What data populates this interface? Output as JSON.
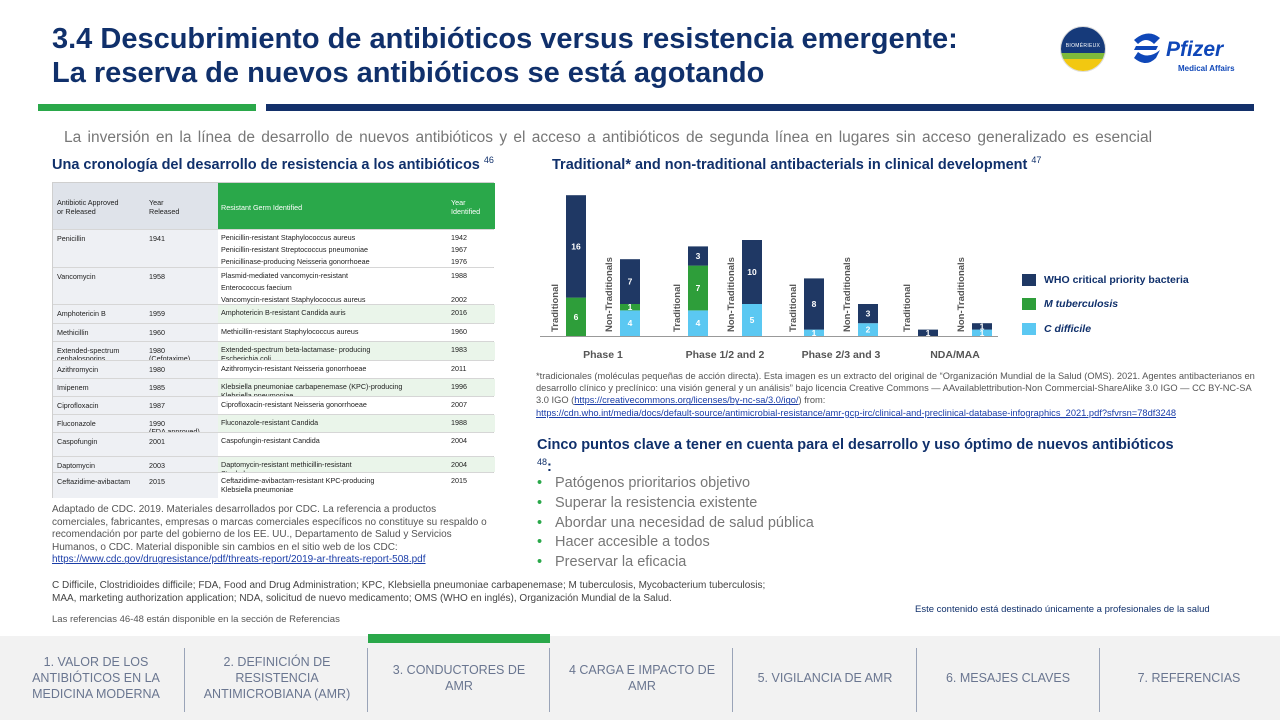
{
  "header": {
    "title_line1": "3.4 Descubrimiento de antibióticos versus resistencia emergente:",
    "title_line2": "La reserva de nuevos antibióticos se está agotando",
    "logo_biomerieux_text": "BIOMÉRIEUX",
    "logo_pfizer_text": "Pfizer",
    "logo_pfizer_sub": "Medical Affairs"
  },
  "intro": "La inversión en la línea de desarrollo de nuevos antibióticos y el acceso a antibióticos de segunda línea en lugares sin acceso generalizado es esencial",
  "subheading_left": "Una cronología del desarrollo de resistencia a los antibióticos",
  "subheading_left_ref": "46",
  "subheading_right": "Traditional* and non-traditional antibacterials in clinical development",
  "subheading_right_ref": "47",
  "table": {
    "headers": [
      "Antibiotic Approved",
      "or Released",
      "Year",
      "Released",
      "Resistant Germ Identified",
      "Year",
      "Identified"
    ],
    "rows": [
      {
        "antibiotic": "Penicillin",
        "year": "1941",
        "germs": [
          "Penicillin-resistant Staphylococcus aureus",
          "Penicillin-resistant Streptococcus pneumoniae",
          "Penicillinase-producing Neisseria gonorrhoeae"
        ],
        "years": [
          "1942",
          "1967",
          "1976"
        ]
      },
      {
        "antibiotic": "Vancomycin",
        "year": "1958",
        "germs": [
          "Plasmid-mediated vancomycin-resistant",
          "Enterococcus faecium",
          "Vancomycin-resistant Staphylococcus aureus"
        ],
        "years": [
          "1988",
          "",
          "2002"
        ]
      },
      {
        "antibiotic": "Amphotericin B",
        "year": "1959",
        "germs": [
          "Amphotericin B-resistant Candida auris"
        ],
        "years": [
          "2016"
        ]
      },
      {
        "antibiotic": "Methicillin",
        "year": "1960",
        "germs": [
          "Methicillin-resistant Staphylococcus aureus"
        ],
        "years": [
          "1960"
        ]
      },
      {
        "antibiotic": "Extended-spectrum",
        "antibiotic2": "cephalosporins",
        "year": "1980",
        "year2": "(Cefotaxime)",
        "germs": [
          "Extended-spectrum beta-lactamase- producing",
          "Escherichia coli"
        ],
        "years": [
          "1983"
        ]
      },
      {
        "antibiotic": "Azithromycin",
        "year": "1980",
        "germs": [
          "Azithromycin-resistant Neisseria gonorrhoeae"
        ],
        "years": [
          "2011"
        ]
      },
      {
        "antibiotic": "Imipenem",
        "year": "1985",
        "germs": [
          "Klebsiella pneumoniae carbapenemase (KPC)-producing",
          "Klebsiella pneumoniae"
        ],
        "years": [
          "1996"
        ]
      },
      {
        "antibiotic": "Ciprofloxacin",
        "year": "1987",
        "germs": [
          "Ciprofloxacin-resistant Neisseria gonorrhoeae"
        ],
        "years": [
          "2007"
        ]
      },
      {
        "antibiotic": "Fluconazole",
        "year": "1990",
        "year2": "(FDA approved)",
        "germs": [
          "Fluconazole-resistant Candida"
        ],
        "years": [
          "1988"
        ]
      },
      {
        "antibiotic": "Caspofungin",
        "year": "2001",
        "germs": [
          "Caspofungin-resistant Candida"
        ],
        "years": [
          "2004"
        ]
      },
      {
        "antibiotic": "Daptomycin",
        "year": "2003",
        "germs": [
          "Daptomycin-resistant methicillin-resistant",
          "Staphylococcus aureus"
        ],
        "years": [
          "2004"
        ]
      },
      {
        "antibiotic": "Ceftazidime-avibactam",
        "year": "2015",
        "germs": [
          "Ceftazidime-avibactam-resistant KPC-producing",
          "Klebsiella pneumoniae"
        ],
        "years": [
          "2015"
        ]
      }
    ]
  },
  "note_left": "Adaptado de CDC. 2019. Materiales desarrollados por CDC. La referencia a productos comerciales, fabricantes, empresas o marcas comerciales específicos no constituye su respaldo o recomendación por parte del gobierno de los EE. UU., Departamento de Salud y Servicios Humanos, o CDC. Material disponible sin cambios en el sitio web de los CDC:",
  "note_left_link": "https://www.cdc.gov/drugresistance/pdf/threats-report/2019-ar-threats-report-508.pdf",
  "abbr_line1": "C Difficile, Clostridioides difficile; FDA, Food and Drug Administration; KPC, Klebsiella pneumoniae carbapenemase; M tuberculosis, Mycobacterium tuberculosis;",
  "abbr_line2": "MAA, marketing authorization application; NDA, solicitud de nuevo medicamento; OMS (WHO en inglés), Organización Mundial de la Salud.",
  "refs_note": "Las referencias 46-48 están disponible en la sección de Referencias",
  "chart_data": {
    "type": "bar",
    "stacked": true,
    "categories": [
      "Phase 1",
      "Phase 1/2 and 2",
      "Phase 2/3 and 3",
      "NDA/MAA"
    ],
    "bar_labels": [
      "Traditional",
      "Non-Traditionals"
    ],
    "series": [
      {
        "name": "WHO critical priority bacteria",
        "color": "#1f3864",
        "traditional": [
          16,
          3,
          8,
          1
        ],
        "non_traditional": [
          7,
          10,
          3,
          1
        ]
      },
      {
        "name": "M tuberculosis",
        "color": "#2e9e3a",
        "traditional": [
          6,
          7,
          0,
          0
        ],
        "non_traditional": [
          1,
          0,
          0,
          0
        ]
      },
      {
        "name": "C difficile",
        "color": "#5bc8f2",
        "traditional": [
          0,
          4,
          1,
          0
        ],
        "non_traditional": [
          4,
          5,
          2,
          1
        ]
      }
    ],
    "legend_position": "right"
  },
  "who_note": "*tradicionales (moléculas pequeñas de acción directa). Esta imagen es un extracto del original de “Organización Mundial de la Salud (OMS). 2021. Agentes antibacterianos en desarrollo clínico y preclínico: una visión general y un análisis” bajo licencia Creative Commons — AAvailablettribution-Non Commercial-ShareAlike 3.0 IGO — CC BY-NC-SA 3.0 IGO (",
  "who_note_link1": "https://creativecommons.org/licenses/by-nc-sa/3.0/igo/",
  "who_note_mid": ") from:",
  "who_note_link2": "https://cdn.who.int/media/docs/default-source/antimicrobial-resistance/amr-gcp-irc/clinical-and-preclinical-database-infographics_2021.pdf?sfvrsn=78df3248",
  "key_points": {
    "title": "Cinco puntos clave a tener en cuenta para el desarrollo y uso óptimo de nuevos antibióticos",
    "ref": "48",
    "items": [
      "Patógenos prioritarios objetivo",
      "Superar la resistencia existente",
      "Abordar una necesidad de salud pública",
      "Hacer accesible a todos",
      "Preservar la eficacia"
    ],
    "bullet": "•"
  },
  "disclaimer": "Este contenido está destinado únicamente a profesionales de la salud",
  "nav": [
    "1. VALOR DE LOS ANTIBIÓTICOS EN LA MEDICINA MODERNA",
    "2. DEFINICIÓN DE RESISTENCIA ANTIMICROBIANA (AMR)",
    "3. CONDUCTORES DE AMR",
    "4 CARGA E IMPACTO DE AMR",
    "5. VIGILANCIA DE AMR",
    "6. MESAJES CLAVES",
    "7. REFERENCIAS"
  ]
}
